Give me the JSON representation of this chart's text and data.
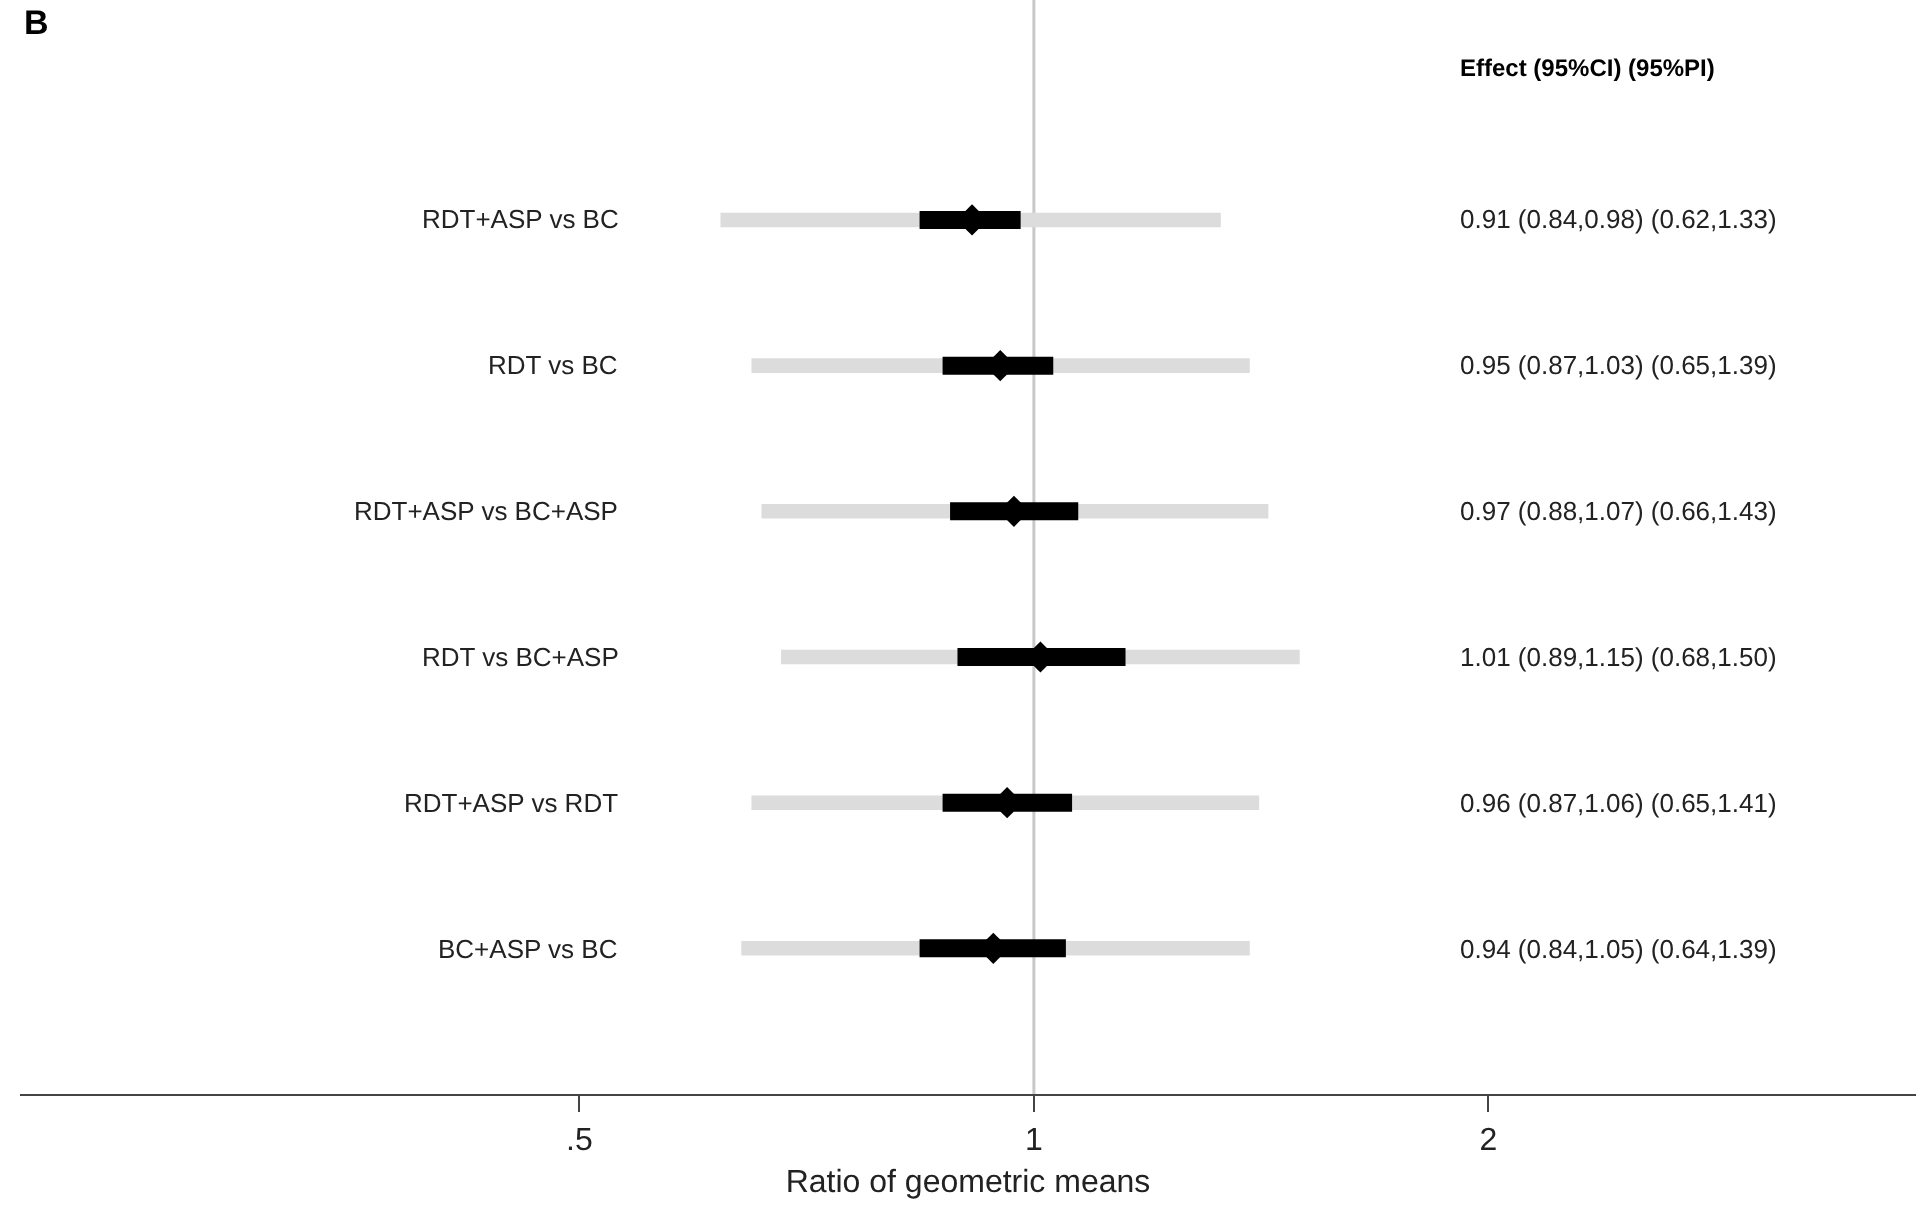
{
  "chart_data": {
    "type": "scatter",
    "orientation": "horizontal",
    "log": "x",
    "annotations": [
      "B",
      "Effect (95%CI) (95%PI)",
      "0.91 (0.84,0.98) (0.62,1.33)",
      "0.95 (0.87,1.03) (0.65,1.39)",
      "0.97 (0.88,1.07) (0.66,1.43)",
      "1.01 (0.89,1.15) (0.68,1.50)",
      "0.96 (0.87,1.06) (0.65,1.41)",
      "0.94 (0.84,1.05) (0.64,1.39)"
    ],
    "xlabel": "Ratio of geometric means",
    "categories": [
      "RDT+ASP vs BC",
      "RDT vs BC",
      "RDT+ASP vs BC+ASP",
      "RDT vs BC+ASP",
      "RDT+ASP vs RDT",
      "BC+ASP vs BC"
    ],
    "series": [
      {
        "type": "bar",
        "color": "#dcdcdc",
        "base": [
          0.62,
          0.65,
          0.66,
          0.68,
          0.65,
          0.64
        ],
        "values": [
          0.71,
          0.74,
          0.77,
          0.82,
          0.76,
          0.75
        ]
      },
      {
        "color": "#000000",
        "marker": "diamond",
        "values": [
          0.91,
          0.95,
          0.97,
          1.01,
          0.96,
          0.94
        ],
        "errors": [
          [
            0.84,
            0.98
          ],
          [
            0.87,
            1.03
          ],
          [
            0.88,
            1.07
          ],
          [
            0.89,
            1.15
          ],
          [
            0.87,
            1.06
          ],
          [
            0.84,
            1.05
          ]
        ]
      }
    ],
    "xlim": [
      0.213,
      3.84
    ],
    "xticks": [
      {
        "value": 0.5,
        "label": ".5"
      },
      1,
      2
    ],
    "ref_lines": [
      {
        "axis": "x",
        "value": 1,
        "color": "#c8c8c8"
      }
    ],
    "grid": false
  }
}
